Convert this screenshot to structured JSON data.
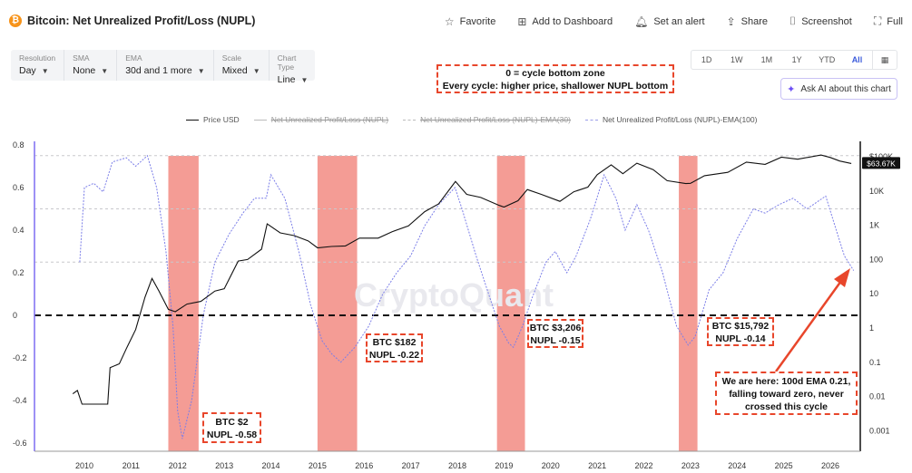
{
  "header": {
    "title": "Bitcoin: Net Unrealized Profit/Loss (NUPL)",
    "actions": [
      {
        "label": "Favorite",
        "icon": "star-icon"
      },
      {
        "label": "Add to Dashboard",
        "icon": "dashboard-icon"
      },
      {
        "label": "Set an alert",
        "icon": "bell-icon"
      },
      {
        "label": "Share",
        "icon": "share-icon"
      },
      {
        "label": "Screenshot",
        "icon": "camera-icon"
      },
      {
        "label": "Full",
        "icon": "fullscreen-icon"
      }
    ]
  },
  "controls": [
    {
      "label": "Resolution",
      "value": "Day"
    },
    {
      "label": "SMA",
      "value": "None"
    },
    {
      "label": "EMA",
      "value": "30d and 1 more"
    },
    {
      "label": "Scale",
      "value": "Mixed"
    },
    {
      "label": "Chart Type",
      "value": "Line"
    }
  ],
  "range_buttons": [
    "1D",
    "1W",
    "1M",
    "1Y",
    "YTD",
    "All"
  ],
  "active_range": "All",
  "ask_ai_label": "Ask AI about this chart",
  "annotations": {
    "top_line1": "0 = cycle bottom zone",
    "top_line2": "Every cycle: higher price, shallower NUPL bottom",
    "c2012_line1": "BTC $2",
    "c2012_line2": "NUPL -0.58",
    "c2015_line1": "BTC $182",
    "c2015_line2": "NUPL -0.22",
    "c2019_line1": "BTC $3,206",
    "c2019_line2": "NUPL -0.15",
    "c2022_line1": "BTC $15,792",
    "c2022_line2": "NUPL -0.14",
    "now_line1": "We are here: 100d EMA 0.21,",
    "now_line2": "falling toward zero, never",
    "now_line3": "crossed this cycle"
  },
  "watermark": "CryptoQuant",
  "colors": {
    "price": "#111111",
    "nupl_ema100": "#7b7ee8",
    "bottom_zone": "#f28b82",
    "annotation_border": "#e8462b",
    "zero_line": "#111111",
    "ai_accent": "#6c4ff5",
    "brand_btc": "#f7931a"
  },
  "chart_data": {
    "type": "line",
    "title": "Bitcoin: Net Unrealized Profit/Loss (NUPL)",
    "legend": [
      {
        "name": "Price USD",
        "visible": true
      },
      {
        "name": "Net Unrealized Profit/Loss (NUPL)",
        "visible": false
      },
      {
        "name": "Net Unrealized Profit/Loss (NUPL)-EMA(30)",
        "visible": false
      },
      {
        "name": "Net Unrealized Profit/Loss (NUPL)-EMA(100)",
        "visible": true
      }
    ],
    "legend_placement": "top-center",
    "x_ticks": [
      "2010",
      "2011",
      "2012",
      "2013",
      "2014",
      "2015",
      "2016",
      "2017",
      "2018",
      "2019",
      "2020",
      "2021",
      "2022",
      "2023",
      "2024",
      "2025",
      "2026"
    ],
    "xlim": [
      2009.8,
      2026.55
    ],
    "y_left_ticks": [
      "0.8",
      "0.6",
      "0.4",
      "0.2",
      "0",
      "-0.2",
      "-0.4",
      "-0.6"
    ],
    "ylim_left": [
      -0.62,
      0.8
    ],
    "y_right_ticks": [
      "$100K",
      "10K",
      "1K",
      "100",
      "10",
      "1",
      "0.1",
      "0.01",
      "0.001"
    ],
    "ylim_right_log": [
      0.001,
      100000
    ],
    "y_right_scale": "log",
    "current_price_label": "$63.67K",
    "zero_line": 0,
    "reference_lines": [
      0.75,
      0.5,
      0.25
    ],
    "bottom_zones": [
      [
        2011.8,
        2012.45
      ],
      [
        2015.0,
        2015.85
      ],
      [
        2018.85,
        2019.45
      ],
      [
        2022.75,
        2023.15
      ]
    ],
    "series": [
      {
        "name": "Price USD",
        "axis": "right",
        "points": [
          [
            2009.75,
            0.012
          ],
          [
            2009.85,
            0.015
          ],
          [
            2009.95,
            0.006
          ],
          [
            2010.2,
            0.006
          ],
          [
            2010.5,
            0.006
          ],
          [
            2010.55,
            0.07
          ],
          [
            2010.75,
            0.09
          ],
          [
            2010.9,
            0.25
          ],
          [
            2011.1,
            0.9
          ],
          [
            2011.3,
            8
          ],
          [
            2011.45,
            28
          ],
          [
            2011.6,
            12
          ],
          [
            2011.8,
            3.5
          ],
          [
            2011.95,
            3
          ],
          [
            2012.2,
            5
          ],
          [
            2012.5,
            6
          ],
          [
            2012.8,
            12
          ],
          [
            2013.0,
            14
          ],
          [
            2013.3,
            90
          ],
          [
            2013.5,
            100
          ],
          [
            2013.8,
            200
          ],
          [
            2013.92,
            1100
          ],
          [
            2014.2,
            600
          ],
          [
            2014.5,
            500
          ],
          [
            2014.8,
            350
          ],
          [
            2015.0,
            220
          ],
          [
            2015.3,
            240
          ],
          [
            2015.6,
            250
          ],
          [
            2015.9,
            420
          ],
          [
            2016.3,
            420
          ],
          [
            2016.6,
            650
          ],
          [
            2016.95,
            960
          ],
          [
            2017.3,
            2500
          ],
          [
            2017.6,
            4200
          ],
          [
            2017.96,
            19000
          ],
          [
            2018.2,
            8000
          ],
          [
            2018.5,
            6500
          ],
          [
            2018.9,
            3800
          ],
          [
            2019.0,
            3400
          ],
          [
            2019.3,
            5200
          ],
          [
            2019.5,
            11000
          ],
          [
            2019.8,
            8000
          ],
          [
            2020.2,
            5000
          ],
          [
            2020.5,
            9500
          ],
          [
            2020.8,
            13000
          ],
          [
            2021.0,
            30000
          ],
          [
            2021.3,
            58000
          ],
          [
            2021.55,
            32000
          ],
          [
            2021.85,
            65000
          ],
          [
            2022.2,
            42000
          ],
          [
            2022.5,
            20000
          ],
          [
            2022.9,
            16500
          ],
          [
            2023.0,
            16800
          ],
          [
            2023.3,
            28000
          ],
          [
            2023.8,
            35000
          ],
          [
            2024.2,
            70000
          ],
          [
            2024.6,
            60000
          ],
          [
            2024.95,
            97000
          ],
          [
            2025.3,
            85000
          ],
          [
            2025.8,
            112000
          ],
          [
            2026.0,
            95000
          ],
          [
            2026.2,
            75000
          ],
          [
            2026.45,
            63670
          ]
        ]
      },
      {
        "name": "Net Unrealized Profit/Loss (NUPL)-EMA(100)",
        "axis": "left",
        "points": [
          [
            2009.9,
            0.25
          ],
          [
            2010.0,
            0.6
          ],
          [
            2010.2,
            0.62
          ],
          [
            2010.4,
            0.58
          ],
          [
            2010.6,
            0.72
          ],
          [
            2010.9,
            0.74
          ],
          [
            2011.1,
            0.7
          ],
          [
            2011.35,
            0.75
          ],
          [
            2011.55,
            0.6
          ],
          [
            2011.75,
            0.3
          ],
          [
            2011.9,
            -0.05
          ],
          [
            2012.0,
            -0.45
          ],
          [
            2012.1,
            -0.58
          ],
          [
            2012.3,
            -0.4
          ],
          [
            2012.55,
            0.0
          ],
          [
            2012.8,
            0.25
          ],
          [
            2013.1,
            0.38
          ],
          [
            2013.4,
            0.48
          ],
          [
            2013.65,
            0.55
          ],
          [
            2013.9,
            0.55
          ],
          [
            2014.0,
            0.66
          ],
          [
            2014.3,
            0.55
          ],
          [
            2014.6,
            0.3
          ],
          [
            2014.85,
            0.05
          ],
          [
            2015.1,
            -0.12
          ],
          [
            2015.3,
            -0.18
          ],
          [
            2015.5,
            -0.22
          ],
          [
            2015.8,
            -0.15
          ],
          [
            2016.1,
            -0.05
          ],
          [
            2016.4,
            0.1
          ],
          [
            2016.7,
            0.2
          ],
          [
            2017.0,
            0.28
          ],
          [
            2017.3,
            0.42
          ],
          [
            2017.6,
            0.52
          ],
          [
            2017.95,
            0.6
          ],
          [
            2018.1,
            0.5
          ],
          [
            2018.4,
            0.28
          ],
          [
            2018.7,
            0.08
          ],
          [
            2018.9,
            -0.05
          ],
          [
            2019.1,
            -0.13
          ],
          [
            2019.2,
            -0.15
          ],
          [
            2019.4,
            -0.05
          ],
          [
            2019.6,
            0.08
          ],
          [
            2019.9,
            0.25
          ],
          [
            2020.1,
            0.3
          ],
          [
            2020.35,
            0.2
          ],
          [
            2020.55,
            0.28
          ],
          [
            2020.85,
            0.45
          ],
          [
            2021.15,
            0.66
          ],
          [
            2021.4,
            0.55
          ],
          [
            2021.6,
            0.4
          ],
          [
            2021.85,
            0.52
          ],
          [
            2022.1,
            0.4
          ],
          [
            2022.4,
            0.2
          ],
          [
            2022.7,
            -0.05
          ],
          [
            2022.95,
            -0.14
          ],
          [
            2023.1,
            -0.1
          ],
          [
            2023.4,
            0.12
          ],
          [
            2023.7,
            0.2
          ],
          [
            2024.0,
            0.36
          ],
          [
            2024.35,
            0.5
          ],
          [
            2024.6,
            0.48
          ],
          [
            2024.9,
            0.52
          ],
          [
            2025.2,
            0.55
          ],
          [
            2025.5,
            0.5
          ],
          [
            2025.9,
            0.56
          ],
          [
            2026.1,
            0.42
          ],
          [
            2026.3,
            0.28
          ],
          [
            2026.5,
            0.21
          ]
        ]
      }
    ]
  }
}
